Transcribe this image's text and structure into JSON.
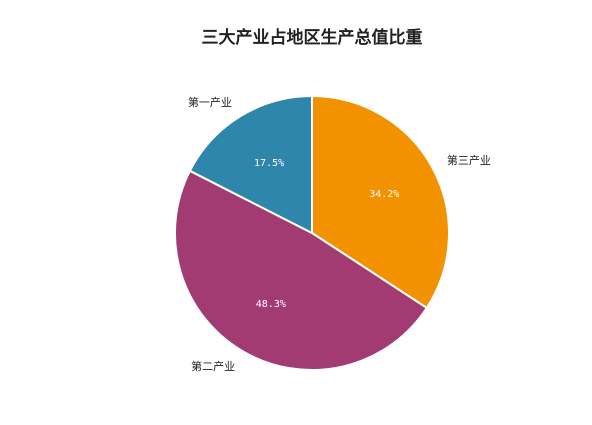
{
  "chart_data": {
    "type": "pie",
    "title": "三大产业占地区生产总值比重",
    "categories": [
      "第三产业",
      "第二产业",
      "第一产业"
    ],
    "values": [
      34.2,
      48.3,
      17.5
    ],
    "value_labels": [
      "34.2%",
      "48.3%",
      "17.5%"
    ],
    "colors": [
      "#F39200",
      "#A23B72",
      "#2E86AB"
    ],
    "start_angle": "12 o'clock, clockwise",
    "legend": "none"
  }
}
